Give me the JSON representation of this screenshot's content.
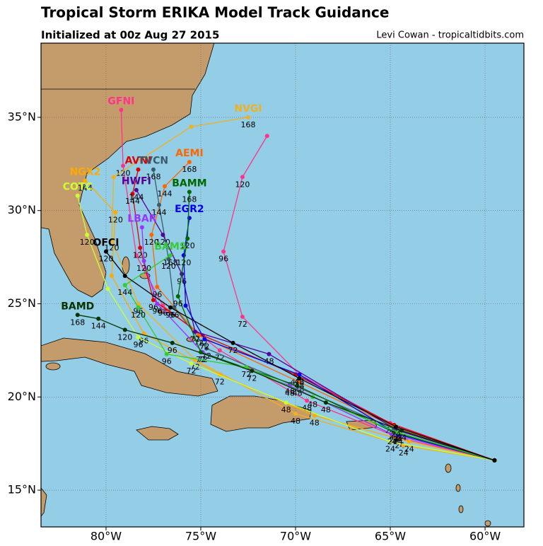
{
  "map": {
    "title": "Tropical Storm ERIKA Model Track Guidance",
    "subtitle": "Initialized at 00z Aug 27 2015",
    "credit": "Levi Cowan - tropicaltidbits.com",
    "xlim": [
      -83.43,
      -57.95
    ],
    "ylim": [
      13.03,
      38.98
    ],
    "xticks": [
      {
        "value": -80,
        "label": "80°W"
      },
      {
        "value": -75,
        "label": "75°W"
      },
      {
        "value": -70,
        "label": "70°W"
      },
      {
        "value": -65,
        "label": "65°W"
      },
      {
        "value": -60,
        "label": "60°W"
      }
    ],
    "yticks": [
      {
        "value": 15,
        "label": "15°N"
      },
      {
        "value": 20,
        "label": "20°N"
      },
      {
        "value": 25,
        "label": "25°N"
      },
      {
        "value": 30,
        "label": "30°N"
      },
      {
        "value": 35,
        "label": "35°N"
      }
    ],
    "grid": true,
    "tracks": [
      {
        "name": "GFNI",
        "color": "#ff3388",
        "lon": [
          -59.5,
          -64.5,
          -69.4,
          -74.0,
          -77.0,
          -78.4,
          -79.1,
          -79.2
        ],
        "lat": [
          16.6,
          17.8,
          19.8,
          22.5,
          24.9,
          27.6,
          32.4,
          35.4
        ],
        "hours": [
          null,
          24,
          48,
          72,
          96,
          null,
          120,
          null
        ]
      },
      {
        "name": "NVGI",
        "color": "#f0b020",
        "lon": [
          -59.5,
          -64.3,
          -70.0,
          -75.3,
          -78.3,
          -79.7,
          -79.6,
          -75.5,
          -72.5
        ],
        "lat": [
          16.6,
          17.4,
          19.1,
          22.0,
          25.0,
          28.4,
          31.8,
          34.5,
          35.0
        ],
        "hours": [
          null,
          24,
          48,
          72,
          96,
          120,
          null,
          null,
          168
        ]
      },
      {
        "color": "#ff3388",
        "lon": [
          -59.5,
          -65.0,
          -69.8,
          -72.8,
          -73.8,
          -72.8,
          -71.5
        ],
        "lat": [
          16.6,
          18.6,
          21.2,
          24.3,
          27.8,
          31.8,
          34.0
        ],
        "hours": [
          null,
          24,
          48,
          72,
          96,
          120,
          null
        ]
      },
      {
        "name": "AVNI",
        "color": "#dd0000",
        "lon": [
          -59.5,
          -64.8,
          -70.0,
          -74.9,
          -77.5,
          -78.2,
          -78.6,
          -78.3
        ],
        "lat": [
          16.6,
          18.5,
          21.2,
          23.3,
          25.2,
          28.0,
          30.9,
          32.2
        ],
        "hours": [
          null,
          24,
          48,
          72,
          96,
          120,
          144,
          null
        ]
      },
      {
        "name": "AEMI",
        "color": "#ff6600",
        "lon": [
          -59.5,
          -64.8,
          -69.8,
          -75.1,
          -77.3,
          -77.6,
          -76.9,
          -75.6
        ],
        "lat": [
          16.6,
          18.4,
          20.8,
          23.3,
          25.9,
          28.7,
          31.3,
          32.6
        ],
        "hours": [
          null,
          24,
          48,
          72,
          96,
          120,
          144,
          168
        ]
      },
      {
        "name": "TVCN",
        "color": "#3d5a6b",
        "lon": [
          -59.5,
          -64.8,
          -70.3,
          -74.7,
          -76.4,
          -76.7,
          -77.2,
          -77.5
        ],
        "lat": [
          16.6,
          18.3,
          20.7,
          22.6,
          24.8,
          27.4,
          30.3,
          32.2
        ],
        "hours": [
          null,
          24,
          48,
          72,
          96,
          120,
          144,
          168
        ]
      },
      {
        "name": "HWFI",
        "color": "#550099",
        "lon": [
          -59.5,
          -64.6,
          -71.4,
          -75.3,
          -76.0,
          -77.0,
          -78.4
        ],
        "lat": [
          16.6,
          18.2,
          22.3,
          23.5,
          26.6,
          28.7,
          31.1
        ],
        "hours": [
          null,
          24,
          48,
          72,
          96,
          120,
          144
        ]
      },
      {
        "name": "NGX2",
        "color": "#ffaa00",
        "lon": [
          -59.5,
          -64.0,
          -69.0,
          -74.0,
          -78.0,
          -79.7,
          -79.5,
          -81.1
        ],
        "lat": [
          16.6,
          17.6,
          19.0,
          21.2,
          23.4,
          26.5,
          29.9,
          31.6
        ],
        "hours": [
          null,
          24,
          48,
          72,
          96,
          null,
          120,
          144
        ]
      },
      {
        "name": "COTC",
        "color": "#ccff33",
        "lon": [
          -59.5,
          -65.0,
          -70.5,
          -75.5,
          -78.3,
          -79.9,
          -81.0,
          -81.5
        ],
        "lat": [
          16.6,
          17.6,
          19.7,
          21.8,
          23.2,
          25.8,
          28.7,
          30.8
        ],
        "hours": [
          null,
          24,
          48,
          72,
          96,
          null,
          120,
          null
        ]
      },
      {
        "name": "LBAR",
        "color": "#9933ff",
        "lon": [
          -59.5,
          -64.9,
          -70.3,
          -74.9,
          -77.3,
          -78.0,
          -78.1
        ],
        "lat": [
          16.6,
          18.0,
          20.6,
          22.4,
          25.0,
          27.3,
          29.1
        ],
        "hours": [
          null,
          24,
          48,
          72,
          96,
          120,
          null
        ]
      },
      {
        "name": "EGR2",
        "color": "#0000ee",
        "lon": [
          -59.5,
          -64.6,
          -69.8,
          -74.8,
          -75.8,
          -75.9,
          -75.6
        ],
        "lat": [
          16.6,
          18.0,
          21.2,
          23.1,
          24.9,
          27.6,
          29.6
        ],
        "hours": [
          null,
          24,
          48,
          72,
          null,
          120,
          null
        ]
      },
      {
        "name": "BAMM",
        "color": "#006600",
        "lon": [
          -59.5,
          -64.8,
          -69.9,
          -75.0,
          -76.2,
          -75.7,
          -75.6
        ],
        "lat": [
          16.6,
          18.1,
          20.6,
          22.4,
          25.4,
          28.5,
          31.0
        ],
        "hours": [
          null,
          24,
          48,
          72,
          96,
          120,
          168
        ]
      },
      {
        "name": "BAMS",
        "color": "#33cc33",
        "lon": [
          -59.5,
          -64.6,
          -69.1,
          -72.6,
          -76.8,
          -78.3,
          -79.0,
          -76.6
        ],
        "lat": [
          16.6,
          18.1,
          20.0,
          21.6,
          22.3,
          24.8,
          26.0,
          27.6
        ],
        "hours": [
          null,
          24,
          48,
          72,
          96,
          120,
          144,
          168
        ]
      },
      {
        "name": "BAMD",
        "color": "#003300",
        "lon": [
          -59.5,
          -64.4,
          -68.4,
          -72.3,
          -76.5,
          -79.0,
          -80.4,
          -81.5
        ],
        "lat": [
          16.6,
          18.2,
          19.7,
          21.4,
          22.9,
          23.6,
          24.2,
          24.4
        ],
        "hours": [
          null,
          24,
          48,
          72,
          96,
          120,
          144,
          168
        ]
      },
      {
        "name": "OFCI",
        "color": "#000000",
        "lon": [
          -59.5,
          -64.7,
          -69.8,
          -73.3,
          -76.6,
          -79.0,
          -80.0
        ],
        "lat": [
          16.6,
          18.4,
          21.0,
          22.9,
          24.8,
          26.5,
          27.8
        ],
        "hours": [
          null,
          24,
          48,
          72,
          96,
          null,
          120
        ]
      }
    ]
  }
}
